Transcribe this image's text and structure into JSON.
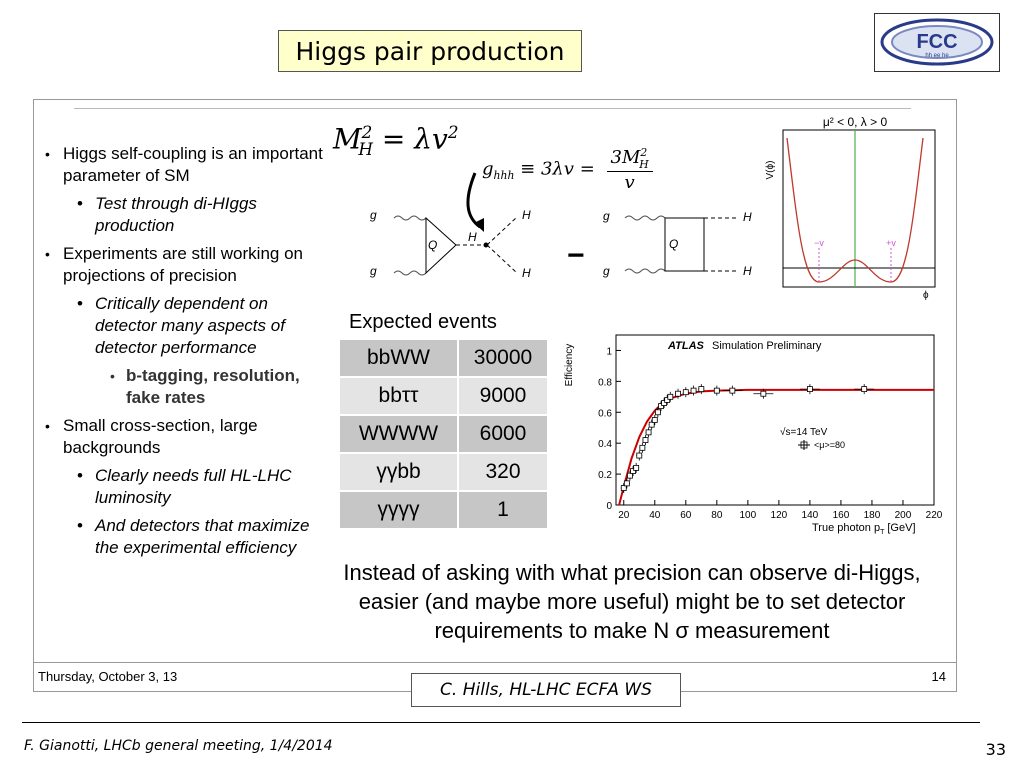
{
  "slide_title": "Higgs pair production",
  "logo": {
    "text": "FCC",
    "subtext": "hh ee he"
  },
  "inner_slide": {
    "date": "Thursday, October 3, 13",
    "page_number": "14"
  },
  "bullets": [
    {
      "level": 1,
      "text": "Higgs self-coupling is an important parameter of SM"
    },
    {
      "level": 2,
      "text": "Test through di-HIggs production"
    },
    {
      "level": 1,
      "text": "Experiments are still working on projections of precision"
    },
    {
      "level": 2,
      "text": "Critically dependent on detector many aspects of detector performance"
    },
    {
      "level": 3,
      "text": "b-tagging, resolution, fake rates"
    },
    {
      "level": 1,
      "text": "Small cross-section, large backgrounds"
    },
    {
      "level": 2,
      "text": "Clearly needs full HL-LHC luminosity"
    },
    {
      "level": 2,
      "text": "And detectors that maximize the experimental efficiency"
    }
  ],
  "formulas": {
    "mass": {
      "lhs": "M",
      "lhs_sup": "2",
      "lhs_sub": "H",
      "rhs": "= λv",
      "rhs_sup": "2"
    },
    "coupling": {
      "lhs": "g",
      "lhs_sub": "hhh",
      "mid": "≡ 3λv =",
      "num": "3M",
      "num_sup": "2",
      "num_sub": "H",
      "den": "v"
    }
  },
  "feynman": {
    "g": "g",
    "q": "Q",
    "h": "H",
    "minus": "−"
  },
  "potential": {
    "title": "μ² < 0, λ > 0",
    "ylabel": "V(ϕ)",
    "xlabel": "ϕ",
    "minus_v": "−v",
    "plus_v": "+v",
    "colors": {
      "curve": "#c0392b",
      "axis": "#4caf50",
      "vev": "#d050d0"
    }
  },
  "events": {
    "title": "Expected events",
    "rows": [
      {
        "process": "bbWW",
        "events": "30000"
      },
      {
        "process": "bbττ",
        "events": "9000"
      },
      {
        "process": "WWWW",
        "events": "6000"
      },
      {
        "process": "γγbb",
        "events": "320"
      },
      {
        "process": "γγγγ",
        "events": "1"
      }
    ]
  },
  "efficiency_plot": {
    "atlas": "ATLAS",
    "label": "Simulation Preliminary",
    "energy": "√s=14 TeV",
    "legend": "<μ>=80",
    "ylabel": "Efficiency",
    "xlabel": "True photon p",
    "xlabel_sub": "T",
    "xlabel_unit": "[GeV]",
    "fit_color": "#cc0000"
  },
  "chart_data": {
    "type": "scatter",
    "title": "",
    "xlabel": "True photon pT [GeV]",
    "ylabel": "Efficiency",
    "xlim": [
      15,
      220
    ],
    "ylim": [
      0,
      1.1
    ],
    "x_ticks": [
      20,
      40,
      60,
      80,
      100,
      120,
      140,
      160,
      180,
      200,
      220
    ],
    "y_ticks": [
      0,
      0.2,
      0.4,
      0.6,
      0.8,
      1
    ],
    "series": [
      {
        "name": "<μ>=80",
        "x": [
          20,
          22,
          24,
          26,
          28,
          30,
          32,
          34,
          36,
          38,
          40,
          42,
          44,
          46,
          48,
          50,
          55,
          60,
          65,
          70,
          80,
          90,
          110,
          140,
          175
        ],
        "y": [
          0.11,
          0.14,
          0.19,
          0.22,
          0.24,
          0.32,
          0.37,
          0.42,
          0.47,
          0.52,
          0.55,
          0.6,
          0.64,
          0.66,
          0.68,
          0.7,
          0.72,
          0.73,
          0.74,
          0.75,
          0.74,
          0.74,
          0.72,
          0.75,
          0.75
        ]
      }
    ],
    "fit": {
      "x": [
        17,
        20,
        25,
        30,
        35,
        40,
        45,
        50,
        60,
        70,
        80,
        100,
        140,
        220
      ],
      "y": [
        0.0,
        0.12,
        0.3,
        0.44,
        0.54,
        0.61,
        0.66,
        0.69,
        0.72,
        0.735,
        0.74,
        0.745,
        0.745,
        0.745
      ]
    }
  },
  "bottom_text": "Instead of asking with what precision can observe di-Higgs, easier (and maybe more useful) might be to set detector requirements to make N σ measurement",
  "credit": "C. Hills, HL-LHC ECFA WS",
  "footer": {
    "left": "F. Gianotti, LHCb general meeting, 1/4/2014",
    "right": "33"
  }
}
